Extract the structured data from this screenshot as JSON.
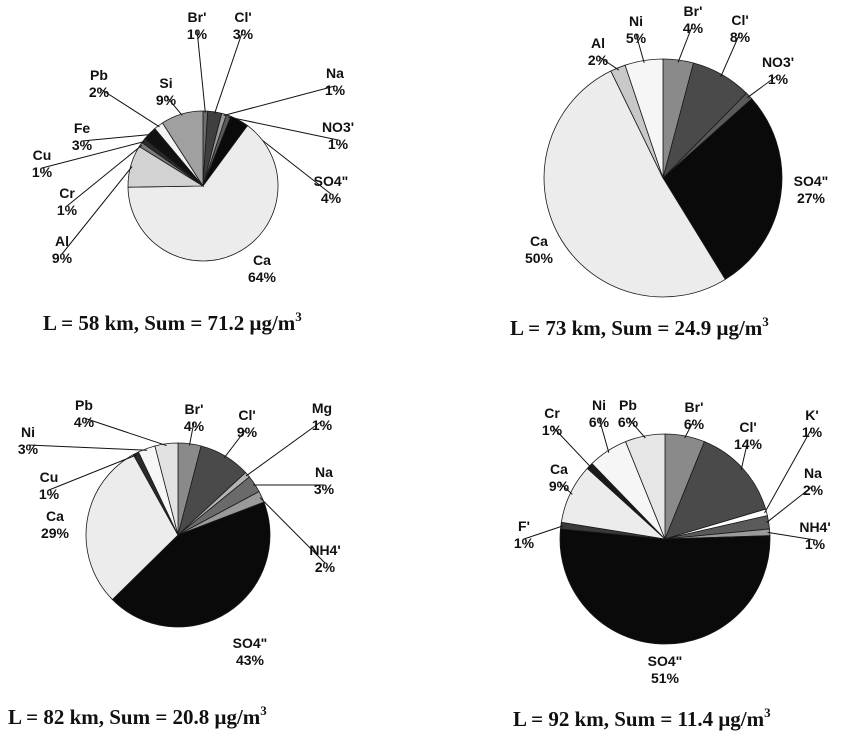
{
  "chart_data": [
    {
      "type": "pie",
      "title": "L = 58 km, Sum = 71.2 μg/m3",
      "caption": {
        "main": "L = 58 km, Sum = 71.2 μg/m",
        "sup": "3"
      },
      "slices": [
        {
          "name": "Br'",
          "label": "Br'",
          "percent_label": "1%",
          "value": 1,
          "color": "#6e6e6e"
        },
        {
          "name": "Cl'",
          "label": "Cl'",
          "percent_label": "3%",
          "value": 3,
          "color": "#3f3f3f"
        },
        {
          "name": "Na",
          "label": "Na",
          "percent_label": "1%",
          "value": 1,
          "color": "#9a9a9a"
        },
        {
          "name": "NO3'",
          "label": "NO3'",
          "percent_label": "1%",
          "value": 1,
          "color": "#5a5a5a"
        },
        {
          "name": "SO4''",
          "label": "SO4\"",
          "percent_label": "4%",
          "value": 4,
          "color": "#0a0a0a"
        },
        {
          "name": "Ca",
          "label": "Ca",
          "percent_label": "64%",
          "value": 64,
          "color": "#ececec"
        },
        {
          "name": "Al",
          "label": "Al",
          "percent_label": "9%",
          "value": 9,
          "color": "#d2d2d2"
        },
        {
          "name": "Cr",
          "label": "Cr",
          "percent_label": "1%",
          "value": 1,
          "color": "#7a7a7a"
        },
        {
          "name": "Cu",
          "label": "Cu",
          "percent_label": "1%",
          "value": 1,
          "color": "#2a2a2a"
        },
        {
          "name": "Fe",
          "label": "Fe",
          "percent_label": "3%",
          "value": 3,
          "color": "#111111"
        },
        {
          "name": "Pb",
          "label": "Pb",
          "percent_label": "2%",
          "value": 2,
          "color": "#f4f4f4"
        },
        {
          "name": "Si",
          "label": "Si",
          "percent_label": "9%",
          "value": 9,
          "color": "#a0a0a0"
        }
      ]
    },
    {
      "type": "pie",
      "title": "L = 73 km, Sum = 24.9 μg/m3",
      "caption": {
        "main": "L = 73 km, Sum = 24.9 μg/m",
        "sup": "3"
      },
      "slices": [
        {
          "name": "Br'",
          "label": "Br'",
          "percent_label": "4%",
          "value": 4,
          "color": "#8a8a8a"
        },
        {
          "name": "Cl'",
          "label": "Cl'",
          "percent_label": "8%",
          "value": 8,
          "color": "#4a4a4a"
        },
        {
          "name": "NO3'",
          "label": "NO3'",
          "percent_label": "1%",
          "value": 1,
          "color": "#5a5a5a"
        },
        {
          "name": "SO4''",
          "label": "SO4\"",
          "percent_label": "27%",
          "value": 27,
          "color": "#0a0a0a"
        },
        {
          "name": "Ca",
          "label": "Ca",
          "percent_label": "50%",
          "value": 50,
          "color": "#ececec"
        },
        {
          "name": "Al",
          "label": "Al",
          "percent_label": "2%",
          "value": 2,
          "color": "#c8c8c8"
        },
        {
          "name": "Ni",
          "label": "Ni",
          "percent_label": "5%",
          "value": 5,
          "color": "#f6f6f6"
        }
      ]
    },
    {
      "type": "pie",
      "title": "L = 82 km, Sum = 20.8 μg/m3",
      "caption": {
        "main": "L = 82 km, Sum = 20.8 μg/m",
        "sup": "3"
      },
      "slices": [
        {
          "name": "Br'",
          "label": "Br'",
          "percent_label": "4%",
          "value": 4,
          "color": "#8a8a8a"
        },
        {
          "name": "Cl'",
          "label": "Cl'",
          "percent_label": "9%",
          "value": 9,
          "color": "#4a4a4a"
        },
        {
          "name": "Mg",
          "label": "Mg",
          "percent_label": "1%",
          "value": 1,
          "color": "#b4b4b4"
        },
        {
          "name": "Na",
          "label": "Na",
          "percent_label": "3%",
          "value": 3,
          "color": "#6a6a6a"
        },
        {
          "name": "NH4'",
          "label": "NH4'",
          "percent_label": "2%",
          "value": 2,
          "color": "#9a9a9a"
        },
        {
          "name": "SO4''",
          "label": "SO4\"",
          "percent_label": "43%",
          "value": 43,
          "color": "#0a0a0a"
        },
        {
          "name": "Ca",
          "label": "Ca",
          "percent_label": "29%",
          "value": 29,
          "color": "#ececec"
        },
        {
          "name": "Cu",
          "label": "Cu",
          "percent_label": "1%",
          "value": 1,
          "color": "#2a2a2a"
        },
        {
          "name": "Ni",
          "label": "Ni",
          "percent_label": "3%",
          "value": 3,
          "color": "#f6f6f6"
        },
        {
          "name": "Pb",
          "label": "Pb",
          "percent_label": "4%",
          "value": 4,
          "color": "#e2e2e2"
        }
      ]
    },
    {
      "type": "pie",
      "title": "L = 92 km, Sum = 11.4 μg/m3",
      "caption": {
        "main": "L = 92 km, Sum = 11.4 μg/m",
        "sup": "3"
      },
      "slices": [
        {
          "name": "Br'",
          "label": "Br'",
          "percent_label": "6%",
          "value": 6,
          "color": "#8a8a8a"
        },
        {
          "name": "Cl'",
          "label": "Cl'",
          "percent_label": "14%",
          "value": 14,
          "color": "#4a4a4a"
        },
        {
          "name": "K'",
          "label": "K'",
          "percent_label": "1%",
          "value": 1,
          "color": "#ffffff"
        },
        {
          "name": "Na",
          "label": "Na",
          "percent_label": "2%",
          "value": 2,
          "color": "#5a5a5a"
        },
        {
          "name": "NH4'",
          "label": "NH4'",
          "percent_label": "1%",
          "value": 1,
          "color": "#9a9a9a"
        },
        {
          "name": "SO4''",
          "label": "SO4\"",
          "percent_label": "51%",
          "value": 51,
          "color": "#0a0a0a"
        },
        {
          "name": "F'",
          "label": "F'",
          "percent_label": "1%",
          "value": 1,
          "color": "#3a3a3a"
        },
        {
          "name": "Ca",
          "label": "Ca",
          "percent_label": "9%",
          "value": 9,
          "color": "#ececec"
        },
        {
          "name": "Cr",
          "label": "Cr",
          "percent_label": "1%",
          "value": 1,
          "color": "#1a1a1a"
        },
        {
          "name": "Ni",
          "label": "Ni",
          "percent_label": "6%",
          "value": 6,
          "color": "#f6f6f6"
        },
        {
          "name": "Pb",
          "label": "Pb",
          "percent_label": "6%",
          "value": 6,
          "color": "#e6e6e6"
        }
      ]
    }
  ]
}
